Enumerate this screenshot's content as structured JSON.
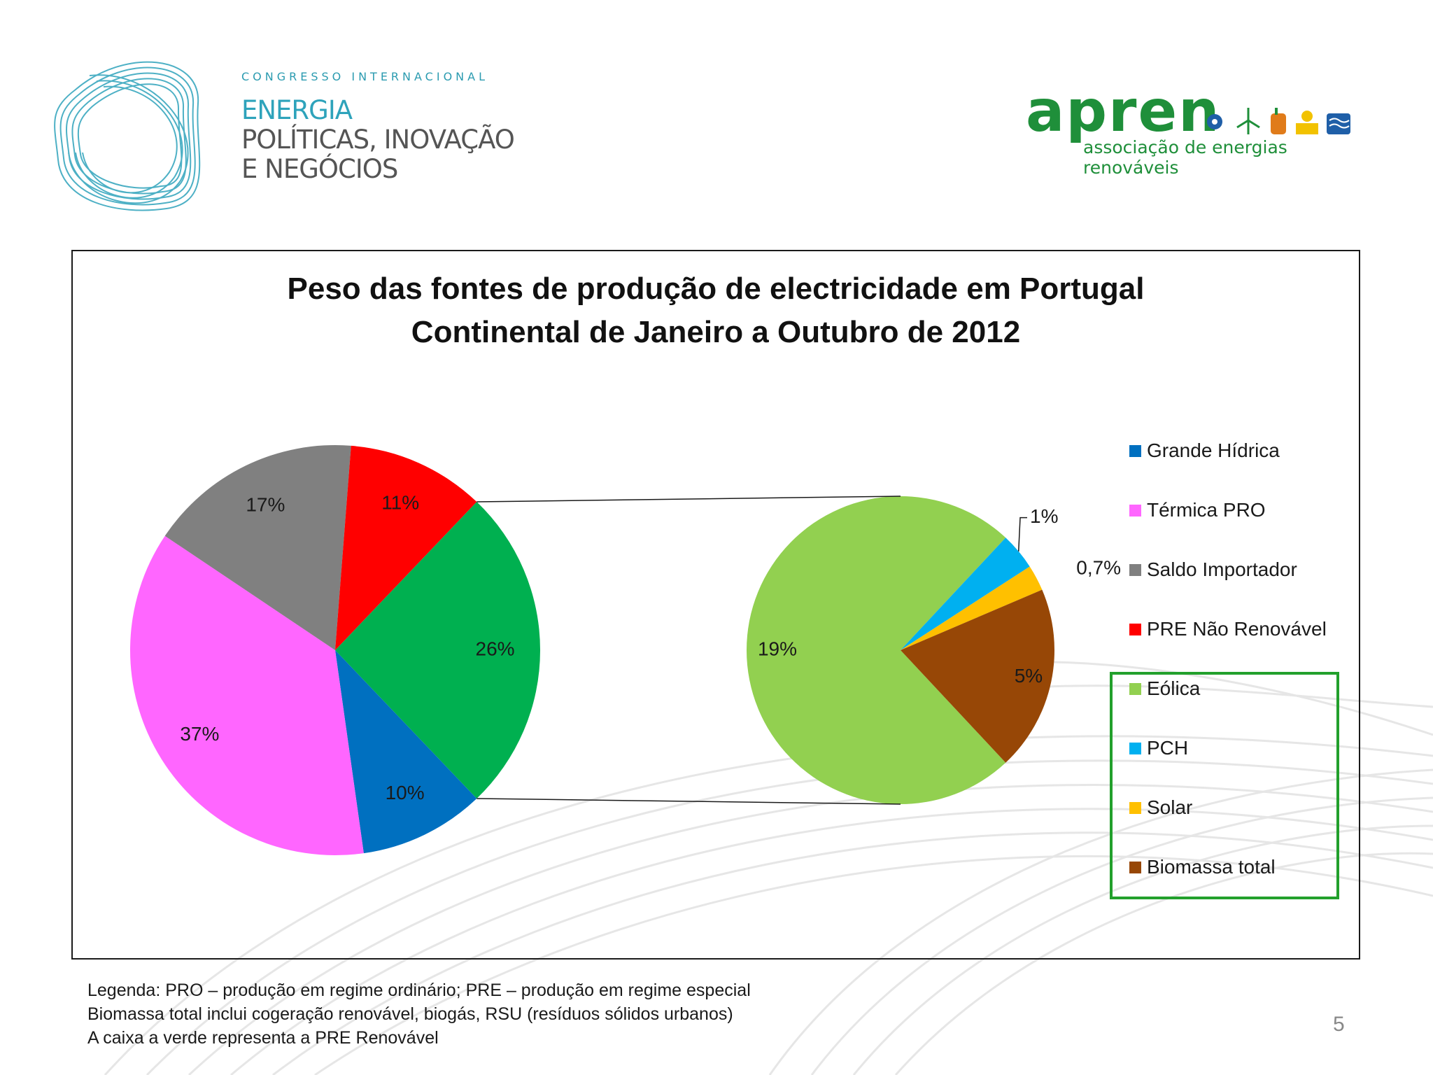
{
  "header": {
    "congress_small": "CONGRESSO INTERNACIONAL",
    "congress_line1": "ENERGIA",
    "congress_line2": "POLÍTICAS, INOVAÇÃO",
    "congress_line3": "E NEGÓCIOS",
    "apren_wordmark": "apren",
    "apren_subtitle": "associação de energias renováveis",
    "colors": {
      "congress_teal": "#2ea3bb",
      "apren_green": "#1f8f3a"
    }
  },
  "chart_data": {
    "type": "pie",
    "title": "Peso das fontes de produção de electricidade em Portugal Continental de Janeiro a Outubro de 2012",
    "title_lines": [
      "Peso das fontes de produção de electricidade em Portugal",
      "Continental de Janeiro a Outubro de 2012"
    ],
    "series": [
      {
        "name": "Grande Hídrica",
        "value": 10,
        "label": "10%",
        "color": "#0070c0",
        "group": "main"
      },
      {
        "name": "Térmica PRO",
        "value": 37,
        "label": "37%",
        "color": "#ff66ff",
        "group": "main"
      },
      {
        "name": "Saldo Importador",
        "value": 17,
        "label": "17%",
        "color": "#808080",
        "group": "main"
      },
      {
        "name": "PRE Não Renovável",
        "value": 11,
        "label": "11%",
        "color": "#ff0000",
        "group": "main"
      },
      {
        "name": "Eólica",
        "value": 19,
        "label": "19%",
        "color": "#92d050",
        "group": "secondary"
      },
      {
        "name": "PCH",
        "value": 1,
        "label": "1%",
        "color": "#00b0f0",
        "group": "secondary"
      },
      {
        "name": "Solar",
        "value": 0.7,
        "label": "0,7%",
        "color": "#ffc000",
        "group": "secondary"
      },
      {
        "name": "Biomassa total",
        "value": 5,
        "label": "5%",
        "color": "#974706",
        "group": "secondary"
      }
    ],
    "combined_slice": {
      "value": 26,
      "label": "26%",
      "color": "#00b050"
    },
    "legend_position": "right",
    "highlight_box_color": "#22a02c"
  },
  "footer": {
    "notes": [
      "Legenda: PRO – produção em regime ordinário; PRE – produção em regime especial",
      "Biomassa total inclui cogeração renovável, biogás, RSU (resíduos sólidos urbanos)",
      "A caixa a verde representa a PRE Renovável"
    ],
    "page_number": "5"
  }
}
